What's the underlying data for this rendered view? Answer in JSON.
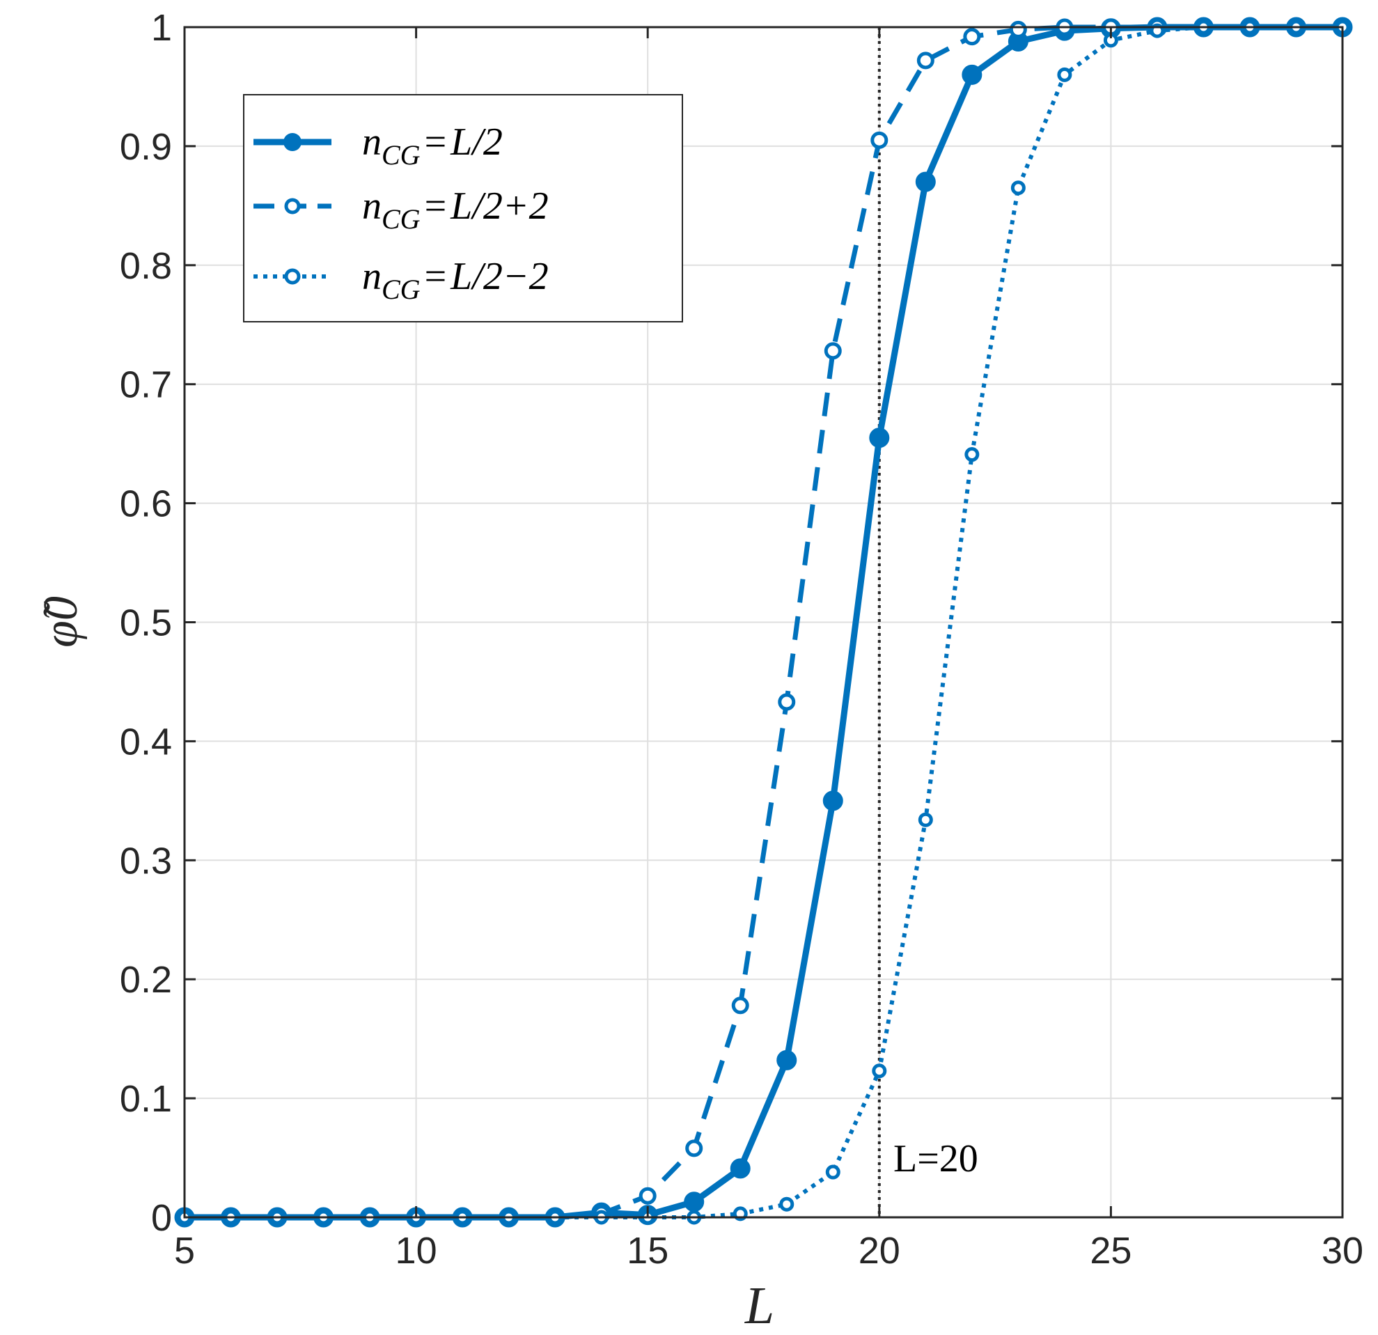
{
  "chart_data": {
    "type": "line",
    "xlabel": "L",
    "ylabel": "φ̃0",
    "xlim": [
      5,
      30
    ],
    "ylim": [
      0,
      1
    ],
    "xticks": [
      5,
      10,
      15,
      20,
      25,
      30
    ],
    "yticks": [
      0,
      0.1,
      0.2,
      0.3,
      0.4,
      0.5,
      0.6,
      0.7,
      0.8,
      0.9,
      1
    ],
    "xtick_labels": [
      "5",
      "10",
      "15",
      "20",
      "25",
      "30"
    ],
    "ytick_labels": [
      "0",
      "0.1",
      "0.2",
      "0.3",
      "0.4",
      "0.5",
      "0.6",
      "0.7",
      "0.8",
      "0.9",
      "1"
    ],
    "grid": true,
    "legend_position": "top-left",
    "color": "#0072BD",
    "series": [
      {
        "name": "nCG=L/2",
        "line_style": "solid",
        "marker": "filled-circle",
        "x": [
          5,
          6,
          7,
          8,
          9,
          10,
          11,
          12,
          13,
          14,
          15,
          16,
          17,
          18,
          19,
          20,
          21,
          22,
          23,
          24,
          25,
          26,
          27,
          28,
          29,
          30
        ],
        "y": [
          0,
          0,
          0,
          0,
          0,
          0,
          0,
          0,
          0,
          0.004,
          0.002,
          0.013,
          0.041,
          0.132,
          0.35,
          0.655,
          0.87,
          0.96,
          0.988,
          0.997,
          0.999,
          1,
          1,
          1,
          1,
          1
        ]
      },
      {
        "name": "nCG=L/2+2",
        "line_style": "dashed",
        "marker": "open-circle",
        "x": [
          5,
          6,
          7,
          8,
          9,
          10,
          11,
          12,
          13,
          14,
          15,
          16,
          17,
          18,
          19,
          20,
          21,
          22,
          23,
          24,
          25,
          26,
          27,
          28,
          29,
          30
        ],
        "y": [
          0,
          0,
          0,
          0,
          0,
          0,
          0,
          0,
          0,
          0.003,
          0.018,
          0.058,
          0.178,
          0.433,
          0.728,
          0.905,
          0.972,
          0.992,
          0.998,
          1,
          1,
          1,
          1,
          1,
          1,
          1
        ]
      },
      {
        "name": "nCG=L/2−2",
        "line_style": "dotted",
        "marker": "open-circle",
        "x": [
          5,
          6,
          7,
          8,
          9,
          10,
          11,
          12,
          13,
          14,
          15,
          16,
          17,
          18,
          19,
          20,
          21,
          22,
          23,
          24,
          25,
          26,
          27,
          28,
          29,
          30
        ],
        "y": [
          0,
          0,
          0,
          0,
          0,
          0,
          0,
          0,
          0,
          0,
          0,
          0,
          0.003,
          0.011,
          0.038,
          0.123,
          0.334,
          0.641,
          0.865,
          0.96,
          0.989,
          0.997,
          1,
          1,
          1,
          1
        ]
      }
    ],
    "reference_line": {
      "x": 20,
      "style": "dotted",
      "color": "#262626",
      "label": "L=20"
    }
  }
}
